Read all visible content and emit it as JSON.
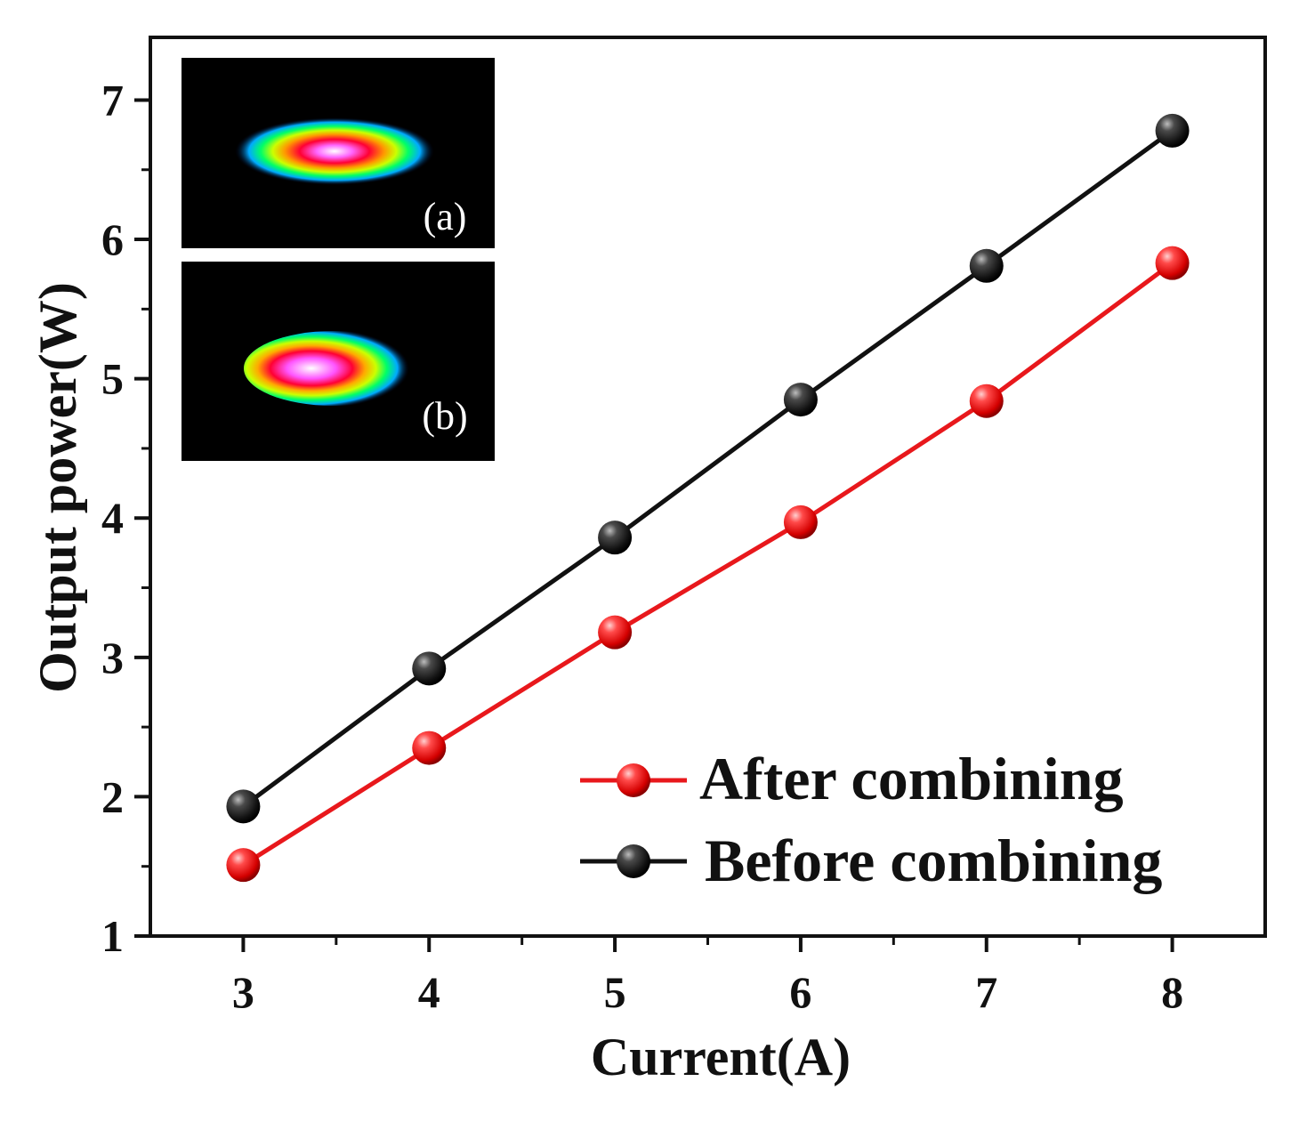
{
  "chart_data": {
    "type": "line",
    "title": "",
    "xlabel": "Current(A)",
    "ylabel": "Output power(W)",
    "xlim": [
      2.5,
      8.5
    ],
    "ylim": [
      1,
      7.45
    ],
    "xticks": [
      3,
      4,
      5,
      6,
      7,
      8
    ],
    "yticks": [
      1,
      2,
      3,
      4,
      5,
      6,
      7
    ],
    "x": [
      3,
      4,
      5,
      6,
      7,
      8
    ],
    "series": [
      {
        "name": "After combining",
        "color": "#e8181c",
        "values": [
          1.51,
          2.35,
          3.18,
          3.97,
          4.84,
          5.83
        ]
      },
      {
        "name": "Before combining",
        "color": "#111111",
        "values": [
          1.93,
          2.92,
          3.86,
          4.85,
          5.81,
          6.78
        ]
      }
    ],
    "legend_position": "bottom-right",
    "grid": false,
    "insets": [
      {
        "label": "(a)",
        "description": "beam profile"
      },
      {
        "label": "(b)",
        "description": "beam profile"
      }
    ]
  }
}
